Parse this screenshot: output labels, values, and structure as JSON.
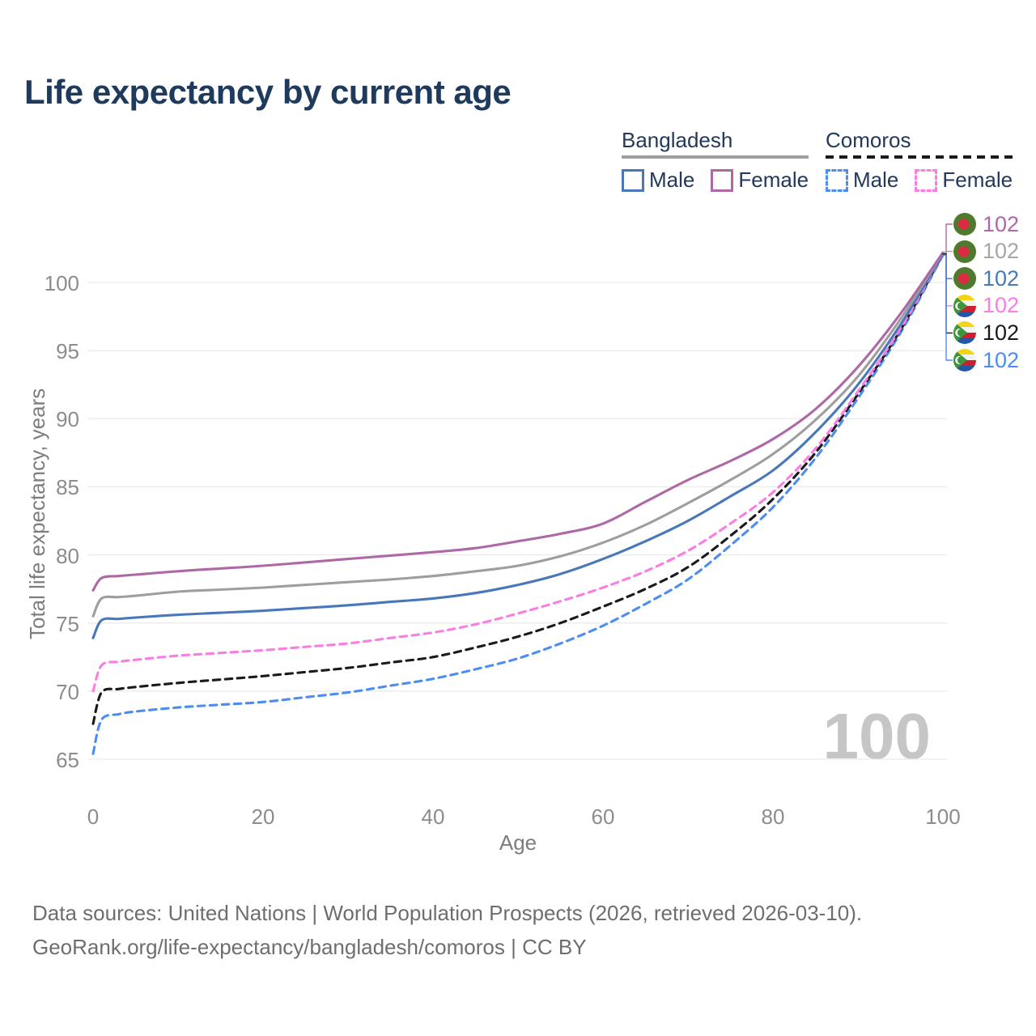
{
  "title": "Life expectancy by current age",
  "watermark": "100",
  "footer": {
    "line1": "Data sources: United Nations | World Population Prospects (2026, retrieved 2026-03-10).",
    "line2": "GeoRank.org/life-expectancy/bangladesh/comoros | CC BY"
  },
  "legend": {
    "position": "top-right",
    "groups": [
      {
        "label": "Bangladesh",
        "line_style": "solid",
        "underline_color": "#9e9e9e",
        "items": [
          {
            "label": "Male",
            "color": "#4878ba",
            "dashed": false
          },
          {
            "label": "Female",
            "color": "#ae68a6",
            "dashed": false
          }
        ]
      },
      {
        "label": "Comoros",
        "line_style": "dashed",
        "underline_color": "#1a1a1a",
        "items": [
          {
            "label": "Male",
            "color": "#4d8df2",
            "dashed": true
          },
          {
            "label": "Female",
            "color": "#fa7ee2",
            "dashed": true
          }
        ]
      }
    ]
  },
  "colors": {
    "title_text": "#1e3a5c",
    "tick_text": "#8c8c8c",
    "gridline": "#e9e9e9",
    "watermark": "#c6c6c6",
    "footer_text": "#6e6e6e"
  },
  "chart_data": {
    "type": "line",
    "title": "Life expectancy by current age",
    "xlabel": "Age",
    "ylabel": "Total life expectancy, years",
    "xlim": [
      0,
      100
    ],
    "ylim": [
      65,
      102.5
    ],
    "x_ticks": [
      0,
      20,
      40,
      60,
      80,
      100
    ],
    "y_ticks": [
      65,
      70,
      75,
      80,
      85,
      90,
      95,
      100
    ],
    "grid": true,
    "legend_position": "top-right",
    "ages": [
      0,
      1,
      3,
      5,
      10,
      15,
      20,
      25,
      30,
      35,
      40,
      45,
      50,
      55,
      60,
      65,
      70,
      75,
      80,
      85,
      90,
      95,
      100
    ],
    "series": [
      {
        "name": "Bangladesh Female",
        "country": "Bangladesh",
        "sex": "Female",
        "color": "#ae68a6",
        "dashed": false,
        "flag_icon": "bangladesh-flag-icon",
        "end_label": "102",
        "values": [
          77.4,
          78.3,
          78.45,
          78.55,
          78.8,
          79.0,
          79.2,
          79.45,
          79.7,
          79.95,
          80.2,
          80.5,
          81.0,
          81.55,
          82.3,
          83.9,
          85.5,
          86.9,
          88.5,
          90.7,
          93.8,
          97.7,
          102.2
        ]
      },
      {
        "name": "Bangladesh Both sexes",
        "country": "Bangladesh",
        "sex": "Both",
        "color": "#9e9e9e",
        "dashed": false,
        "flag_icon": "bangladesh-flag-icon",
        "end_label": "102",
        "end_label_color": "#a6a6a6",
        "values": [
          75.5,
          76.8,
          76.9,
          77.0,
          77.3,
          77.45,
          77.6,
          77.8,
          78.0,
          78.2,
          78.45,
          78.8,
          79.2,
          79.9,
          80.9,
          82.2,
          83.8,
          85.5,
          87.4,
          89.9,
          93.1,
          97.3,
          102.2
        ]
      },
      {
        "name": "Bangladesh Male",
        "country": "Bangladesh",
        "sex": "Male",
        "color": "#4878ba",
        "dashed": false,
        "flag_icon": "bangladesh-flag-icon",
        "end_label": "102",
        "values": [
          73.9,
          75.2,
          75.3,
          75.4,
          75.6,
          75.75,
          75.9,
          76.1,
          76.3,
          76.55,
          76.8,
          77.2,
          77.8,
          78.6,
          79.7,
          81.0,
          82.5,
          84.3,
          86.2,
          89.0,
          92.5,
          96.9,
          102.1
        ]
      },
      {
        "name": "Comoros Female",
        "country": "Comoros",
        "sex": "Female",
        "color": "#fa7ee2",
        "dashed": true,
        "flag_icon": "comoros-flag-icon",
        "end_label": "102",
        "values": [
          70.0,
          71.9,
          72.15,
          72.3,
          72.6,
          72.8,
          73.0,
          73.25,
          73.5,
          73.9,
          74.3,
          74.9,
          75.7,
          76.6,
          77.6,
          78.8,
          80.3,
          82.3,
          84.6,
          87.8,
          92.0,
          96.6,
          102.1
        ]
      },
      {
        "name": "Comoros Both sexes",
        "country": "Comoros",
        "sex": "Both",
        "color": "#1a1a1a",
        "dashed": true,
        "flag_icon": "comoros-flag-icon",
        "end_label": "102",
        "values": [
          67.6,
          69.9,
          70.15,
          70.3,
          70.6,
          70.85,
          71.1,
          71.4,
          71.7,
          72.1,
          72.5,
          73.2,
          74.0,
          75.0,
          76.2,
          77.5,
          79.1,
          81.4,
          84.1,
          87.5,
          91.8,
          96.5,
          102.1
        ]
      },
      {
        "name": "Comoros Male",
        "country": "Comoros",
        "sex": "Male",
        "color": "#4d8df2",
        "dashed": true,
        "flag_icon": "comoros-flag-icon",
        "end_label": "102",
        "values": [
          65.4,
          67.9,
          68.3,
          68.5,
          68.8,
          69.0,
          69.2,
          69.55,
          69.9,
          70.4,
          70.9,
          71.6,
          72.4,
          73.5,
          74.8,
          76.4,
          78.2,
          80.7,
          83.5,
          87.1,
          91.5,
          96.3,
          102.0
        ]
      }
    ]
  }
}
